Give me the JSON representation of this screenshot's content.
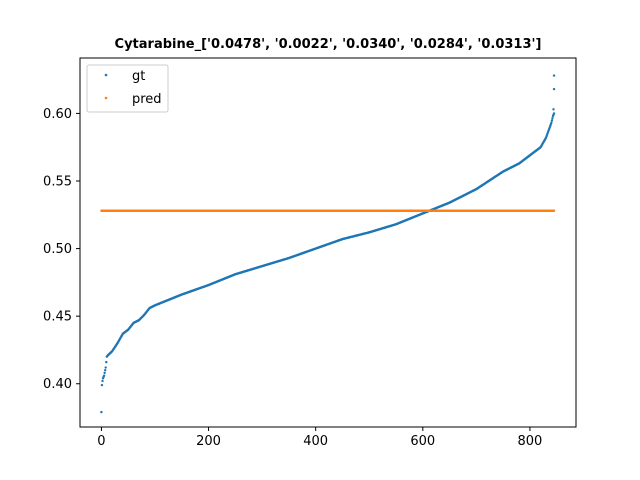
{
  "chart_data": {
    "type": "scatter",
    "title": "Cytarabine_['0.0478', '0.0022', '0.0340', '0.0284', '0.0313']",
    "xlabel": "",
    "ylabel": "",
    "xlim": [
      -40,
      886
    ],
    "ylim": [
      0.368,
      0.641
    ],
    "x_ticks": [
      0,
      200,
      400,
      600,
      800
    ],
    "x_tick_labels": [
      "0",
      "200",
      "400",
      "600",
      "800"
    ],
    "y_ticks": [
      0.4,
      0.45,
      0.5,
      0.55,
      0.6
    ],
    "y_tick_labels": [
      "0.40",
      "0.45",
      "0.50",
      "0.55",
      "0.60"
    ],
    "grid": false,
    "legend_position": "top-left",
    "n_points": 846,
    "series": [
      {
        "name": "gt",
        "color": "#1f77b4",
        "marker": "dot",
        "description": "sorted ascending ground-truth values",
        "x": [
          0,
          1,
          2,
          3,
          5,
          8,
          10,
          12,
          20,
          30,
          40,
          50,
          60,
          70,
          75,
          80,
          90,
          100,
          150,
          200,
          250,
          300,
          350,
          400,
          450,
          500,
          550,
          600,
          650,
          700,
          750,
          780,
          800,
          820,
          830,
          840,
          843,
          845
        ],
        "y": [
          0.379,
          0.399,
          0.402,
          0.404,
          0.406,
          0.412,
          0.42,
          0.421,
          0.424,
          0.43,
          0.437,
          0.44,
          0.445,
          0.447,
          0.449,
          0.451,
          0.456,
          0.458,
          0.466,
          0.473,
          0.481,
          0.487,
          0.493,
          0.5,
          0.507,
          0.512,
          0.518,
          0.526,
          0.534,
          0.544,
          0.557,
          0.563,
          0.569,
          0.575,
          0.582,
          0.593,
          0.598,
          0.6
        ],
        "outliers": [
          {
            "x": 844,
            "y": 0.603
          },
          {
            "x": 845,
            "y": 0.618
          },
          {
            "x": 845,
            "y": 0.628
          }
        ]
      },
      {
        "name": "pred",
        "color": "#ff7f0e",
        "marker": "dot",
        "description": "constant prediction across all samples",
        "x": [
          0,
          845
        ],
        "y": [
          0.528,
          0.528
        ]
      }
    ]
  }
}
